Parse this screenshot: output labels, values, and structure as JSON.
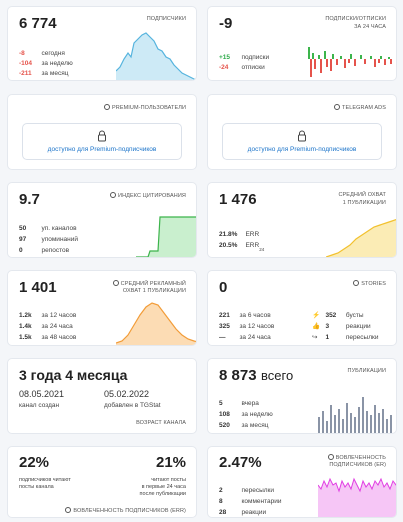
{
  "subscribers": {
    "value": "6 774",
    "title": "ПОДПИСЧИКИ",
    "rows": [
      {
        "num": "-8",
        "text": "сегодня"
      },
      {
        "num": "-104",
        "text": "за неделю"
      },
      {
        "num": "-211",
        "text": "за месяц"
      }
    ]
  },
  "subs_unsubs": {
    "value": "-9",
    "title_line1": "ПОДПИСКИ/ОТПИСКИ",
    "title_line2": "ЗА 24 ЧАСА",
    "rows": [
      {
        "num": "+15",
        "text": "подписки"
      },
      {
        "num": "-24",
        "text": "отписки"
      }
    ]
  },
  "premium_users": {
    "title": "PREMIUM-ПОЛЬЗОВАТЕЛИ",
    "link": "доступно для Premium-подписчиков",
    "icon": "clock-icon"
  },
  "telegram_ads": {
    "title": "TELEGRAM ADS",
    "link": "доступно для Premium-подписчиков",
    "icon": "clock-icon"
  },
  "citation": {
    "value": "9.7",
    "title": "ИНДЕКС ЦИТИРОВАНИЯ",
    "rows": [
      {
        "num": "50",
        "text": "уп. каналов"
      },
      {
        "num": "97",
        "text": "упоминаний"
      },
      {
        "num": "0",
        "text": "репостов"
      }
    ]
  },
  "reach": {
    "value": "1 476",
    "title_line1": "СРЕДНИЙ ОХВАТ",
    "title_line2": "1 ПУБЛИКАЦИИ",
    "err_rows": [
      {
        "num": "21.8%",
        "text": "ERR"
      },
      {
        "num": "20.5%",
        "text": "ERR",
        "sub": "24"
      }
    ]
  },
  "ad_reach": {
    "value": "1 401",
    "title_line1": "СРЕДНИЙ РЕКЛАМНЫЙ",
    "title_line2": "ОХВАТ 1 ПУБЛИКАЦИИ",
    "rows": [
      {
        "num": "1.2k",
        "text": "за 12 часов"
      },
      {
        "num": "1.4k",
        "text": "за 24 часа"
      },
      {
        "num": "1.5k",
        "text": "за 48 часов"
      }
    ]
  },
  "stories": {
    "value": "0",
    "title": "STORIES",
    "left_rows": [
      {
        "num": "221",
        "text": "за 6 часов"
      },
      {
        "num": "325",
        "text": "за 12 часов"
      },
      {
        "num": "—",
        "text": "за 24 часа"
      }
    ],
    "right_rows": [
      {
        "icon": "boost-icon",
        "num": "352",
        "text": "бусты"
      },
      {
        "icon": "thumbs-up-icon",
        "num": "3",
        "text": "реакции"
      },
      {
        "icon": "share-icon",
        "num": "1",
        "text": "пересылки"
      }
    ]
  },
  "age": {
    "value": "3 года 4 месяца",
    "created_date": "08.05.2021",
    "created_label": "канал создан",
    "added_date": "05.02.2022",
    "added_label": "добавлен в TGStat",
    "footer": "ВОЗРАСТ КАНАЛА"
  },
  "publications": {
    "value": "8 873",
    "value_suffix": "всего",
    "title": "ПУБЛИКАЦИИ",
    "rows": [
      {
        "num": "5",
        "text": "вчера"
      },
      {
        "num": "108",
        "text": "за неделю"
      },
      {
        "num": "520",
        "text": "за месяц"
      }
    ]
  },
  "engagement_err": {
    "left_value": "22%",
    "left_text_line1": "подписчиков читают",
    "left_text_line2": "посты канала",
    "right_value": "21%",
    "right_text_line1": "читают посты",
    "right_text_line2": "в первые 24 часа",
    "right_text_line3": "после публикации",
    "footer": "ВОВЛЕЧЕННОСТЬ ПОДПИСЧИКОВ (ERR)"
  },
  "engagement_er": {
    "value": "2.47%",
    "title_line1": "ВОВЛЕЧЕННОСТЬ",
    "title_line2": "ПОДПИСЧИКОВ (ER)",
    "rows": [
      {
        "num": "2",
        "text": "пересылки"
      },
      {
        "num": "8",
        "text": "комментарии"
      },
      {
        "num": "28",
        "text": "реакции"
      }
    ]
  },
  "colors": {
    "negative": "#e5534b",
    "positive": "#2eaa4a",
    "link": "#1a73c9",
    "subscribers_chart": "#56b4de",
    "citation_chart": "#3cb44b",
    "reach_chart": "#f2c12e",
    "ad_reach_chart": "#f29c38",
    "publications_chart": "#8a94a6",
    "er_chart": "#e13ee3"
  }
}
